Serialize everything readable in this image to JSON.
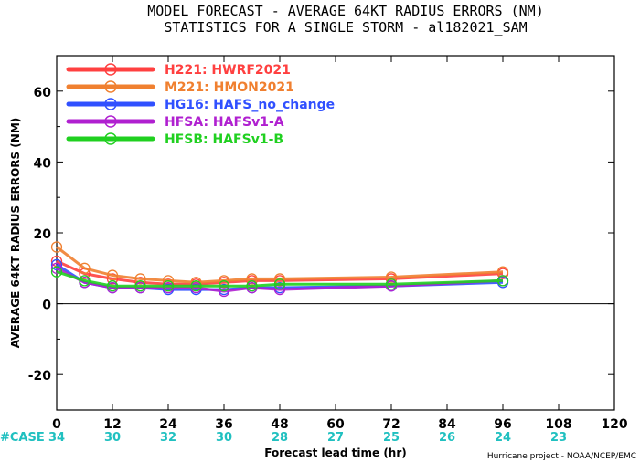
{
  "chart_data": {
    "type": "line",
    "title_line1": "MODEL FORECAST - AVERAGE 64KT RADIUS ERRORS (NM)",
    "title_line2": "STATISTICS FOR A SINGLE STORM - al182021_SAM",
    "xlabel": "Forecast lead time (hr)",
    "ylabel": "AVERAGE 64KT RADIUS ERRORS (NM)",
    "xlim": [
      0,
      120
    ],
    "ylim": [
      -30,
      70
    ],
    "xticks": [
      0,
      12,
      24,
      36,
      48,
      60,
      72,
      84,
      96,
      108,
      120
    ],
    "yticks": [
      -20,
      0,
      20,
      40,
      60
    ],
    "zero_line": true,
    "legend_position": "top-left",
    "x": [
      0,
      6,
      12,
      18,
      24,
      30,
      36,
      42,
      48,
      72,
      96
    ],
    "series": [
      {
        "name": "H221: HWRF2021",
        "color": "#ff4040",
        "values": [
          12,
          8.5,
          7,
          6,
          5.5,
          5.5,
          6,
          6.5,
          6.5,
          7,
          8.5
        ]
      },
      {
        "name": "M221: HMON2021",
        "color": "#f08030",
        "values": [
          16,
          10,
          8,
          7,
          6.5,
          6,
          6.5,
          7,
          7,
          7.5,
          9
        ]
      },
      {
        "name": "HG16: HAFS_no_change",
        "color": "#3050ff",
        "values": [
          11,
          6,
          4.5,
          4.5,
          4,
          4,
          4,
          4.5,
          4.5,
          5,
          6
        ]
      },
      {
        "name": "HFSA: HAFSv1-A",
        "color": "#b020d0",
        "values": [
          10,
          6,
          4.5,
          4.5,
          4.5,
          4.5,
          3.5,
          4.5,
          4,
          5,
          6.5
        ]
      },
      {
        "name": "HFSB: HAFSv1-B",
        "color": "#20d020",
        "values": [
          9,
          6.5,
          5,
          5,
          5,
          5,
          5,
          5,
          5.5,
          5.5,
          6.5
        ]
      }
    ],
    "cases": {
      "label": "#CASE",
      "color": "#20c0c0",
      "x": [
        0,
        12,
        24,
        36,
        48,
        60,
        72,
        84,
        96,
        108
      ],
      "values": [
        "34",
        "30",
        "32",
        "30",
        "28",
        "27",
        "25",
        "26",
        "24",
        "23"
      ]
    },
    "credit": "Hurricane project - NOAA/NCEP/EMC"
  }
}
